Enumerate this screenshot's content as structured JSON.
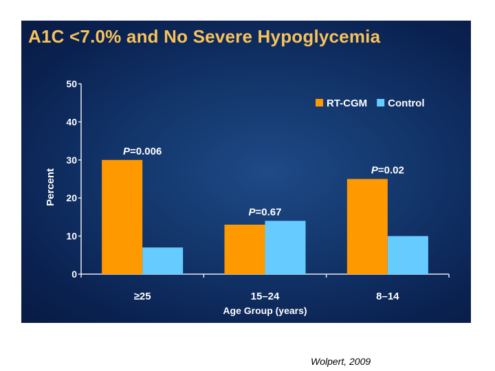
{
  "slide": {
    "title": "A1C <7.0% and No Severe Hypoglycemia"
  },
  "citation": "Wolpert, 2009",
  "colors": {
    "rt_cgm": "#ff9900",
    "control": "#66ccff",
    "axis": "#e8ecf4",
    "text": "#ffffff"
  },
  "chart_data": {
    "type": "bar",
    "title": "A1C <7.0% and No Severe Hypoglycemia",
    "xlabel": "Age Group (years)",
    "ylabel": "Percent",
    "ylim": [
      0,
      50
    ],
    "yticks": [
      0,
      10,
      20,
      30,
      40,
      50
    ],
    "categories": [
      "≥25",
      "15–24",
      "8–14"
    ],
    "series": [
      {
        "name": "RT-CGM",
        "values": [
          30,
          13,
          25
        ]
      },
      {
        "name": "Control",
        "values": [
          7,
          14,
          10
        ]
      }
    ],
    "annotations": [
      {
        "category": "≥25",
        "p_label": "P",
        "p_value": "=0.006"
      },
      {
        "category": "15–24",
        "p_label": "P",
        "p_value": "=0.67"
      },
      {
        "category": "8–14",
        "p_label": "P",
        "p_value": "=0.02"
      }
    ],
    "legend": {
      "position": "top-right"
    }
  }
}
